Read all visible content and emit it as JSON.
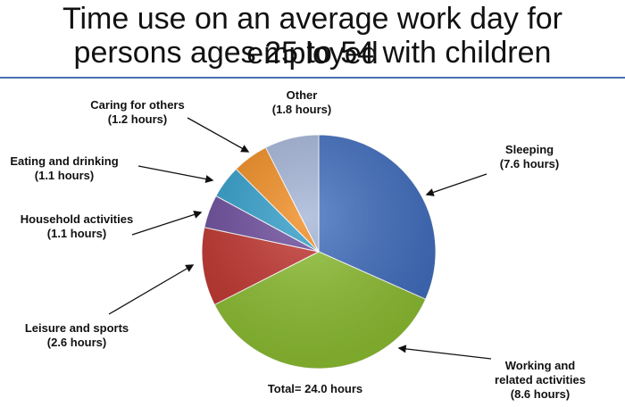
{
  "chart_data": {
    "type": "pie",
    "title_lines": [
      "Time use on an average work day for employed",
      "persons ages 25 to 54 with children"
    ],
    "total_label": "Total= 24.0 hours",
    "slices": [
      {
        "label": "Sleeping",
        "value": 7.6,
        "value_label": "(7.6 hours)",
        "color": "#3d6bbd"
      },
      {
        "label": "Working and related activities",
        "label_lines": [
          "Working and",
          "related activities"
        ],
        "value": 8.6,
        "value_label": "(8.6 hours)",
        "color": "#8bbd2f"
      },
      {
        "label": "Leisure and sports",
        "value": 2.6,
        "value_label": "(2.6 hours)",
        "color": "#c0322c"
      },
      {
        "label": "Household activities",
        "value": 1.1,
        "value_label": "(1.1 hours)",
        "color": "#6a4a9b"
      },
      {
        "label": "Eating and drinking",
        "value": 1.1,
        "value_label": "(1.1 hours)",
        "color": "#2e9cc9"
      },
      {
        "label": "Caring for others",
        "value": 1.2,
        "value_label": "(1.2 hours)",
        "color": "#f08a1d"
      },
      {
        "label": "Other",
        "value": 1.8,
        "value_label": "(1.8 hours)",
        "color": "#a3b3d6"
      }
    ]
  }
}
